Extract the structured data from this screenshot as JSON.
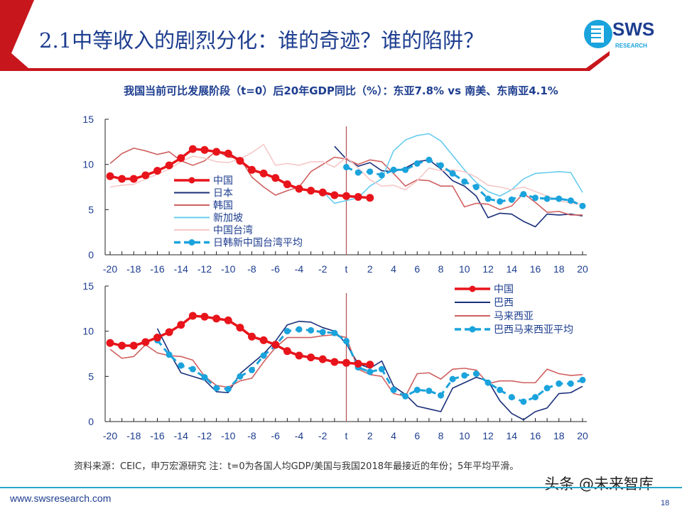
{
  "header": {
    "title": "2.1中等收入的剧烈分化：谁的奇迹？谁的陷阱？",
    "logo": "SWS",
    "logo_sub": "RESEARCH"
  },
  "subtitle": "我国当前可比发展阶段（t=0）后20年GDP同比（%）：东亚7.8% vs 南美、东南亚4.1%",
  "chart_data": [
    {
      "type": "line",
      "ylim": [
        0,
        15
      ],
      "yticks": [
        "0",
        "5",
        "10",
        "15"
      ],
      "xlim": [
        -20,
        20
      ],
      "xticks": [
        "-20",
        "-18",
        "-16",
        "-14",
        "-12",
        "-10",
        "-8",
        "-6",
        "-4",
        "-2",
        "t",
        "2",
        "4",
        "6",
        "8",
        "10",
        "12",
        "14",
        "16",
        "18",
        "20"
      ],
      "legend": "center-left",
      "grid": false,
      "series": [
        {
          "name": "中国",
          "color": "#e8141b",
          "style": "marker",
          "x_start": -20,
          "values": [
            8.7,
            8.4,
            8.4,
            8.8,
            9.3,
            9.9,
            10.7,
            11.7,
            11.6,
            11.4,
            11.2,
            10.4,
            9.4,
            9.0,
            8.5,
            7.8,
            7.3,
            7.1,
            6.9,
            6.6,
            6.5,
            6.4,
            6.3
          ]
        },
        {
          "name": "日本",
          "color": "#1a2f7a",
          "style": "line",
          "x_start": -1,
          "values": [
            12.0,
            10.6,
            9.8,
            10.2,
            9.3,
            9.2,
            9.6,
            10.3,
            10.5,
            9.5,
            8.2,
            7.6,
            6.5,
            4.1,
            4.6,
            4.5,
            3.7,
            3.1,
            4.5,
            4.4,
            4.5,
            4.3
          ]
        },
        {
          "name": "韩国",
          "color": "#d06060",
          "style": "line",
          "x_start": -20,
          "values": [
            10.1,
            11.2,
            11.8,
            11.5,
            11.1,
            11.4,
            10.4,
            9.9,
            10.4,
            11.5,
            10.8,
            10.7,
            8.6,
            7.5,
            6.6,
            7.1,
            7.5,
            9.2,
            10.0,
            10.8,
            10.6,
            10.0,
            10.5,
            10.3,
            9.0,
            7.6,
            8.3,
            8.2,
            7.6,
            7.6,
            5.3,
            5.7,
            5.6,
            5.0,
            5.4,
            6.8,
            5.8,
            4.7,
            4.8,
            4.4,
            4.4
          ]
        },
        {
          "name": "新加坡",
          "color": "#66ccee",
          "style": "line",
          "x_start": -2,
          "values": [
            7.0,
            5.7,
            6.0,
            6.3,
            7.6,
            8.4,
            11.5,
            12.7,
            13.2,
            13.4,
            12.6,
            11.0,
            9.4,
            8.0,
            7.0,
            6.5,
            7.2,
            8.4,
            9.0,
            9.1,
            9.2,
            9.1,
            6.9
          ]
        },
        {
          "name": "中国台湾",
          "color": "#f6c8c8",
          "style": "line",
          "x_start": -20,
          "values": [
            7.5,
            7.7,
            7.8,
            8.4,
            8.9,
            9.5,
            10.3,
            10.9,
            10.7,
            10.3,
            10.2,
            10.6,
            11.3,
            12.2,
            9.9,
            10.1,
            9.9,
            10.3,
            10.3,
            9.7,
            10.8,
            9.6,
            8.3,
            7.6,
            7.7,
            7.2,
            8.2,
            9.6,
            9.3,
            9.4,
            9.2,
            8.6,
            7.7,
            7.5,
            7.2,
            7.5,
            7.0,
            6.5,
            6.0,
            5.7,
            5.6
          ]
        },
        {
          "name": "日韩新中国台湾平均",
          "color": "#1aa3dc",
          "style": "dashmarker",
          "x_start": 0,
          "values": [
            9.7,
            9.1,
            9.2,
            8.8,
            9.4,
            9.4,
            10.1,
            10.5,
            9.9,
            9.0,
            8.1,
            7.5,
            6.2,
            5.9,
            6.1,
            6.7,
            6.3,
            6.2,
            6.2,
            6.0,
            5.4
          ]
        }
      ]
    },
    {
      "type": "line",
      "ylim": [
        0,
        15
      ],
      "yticks": [
        "0",
        "5",
        "10",
        "15"
      ],
      "xlim": [
        -20,
        20
      ],
      "xticks": [
        "-20",
        "-18",
        "-16",
        "-14",
        "-12",
        "-10",
        "-8",
        "-6",
        "-4",
        "-2",
        "t",
        "2",
        "4",
        "6",
        "8",
        "10",
        "12",
        "14",
        "16",
        "18",
        "20"
      ],
      "legend": "top-right",
      "grid": false,
      "series": [
        {
          "name": "中国",
          "color": "#e8141b",
          "style": "marker",
          "x_start": -20,
          "values": [
            8.7,
            8.4,
            8.4,
            8.8,
            9.3,
            9.9,
            10.7,
            11.7,
            11.6,
            11.4,
            11.2,
            10.4,
            9.4,
            9.0,
            8.5,
            7.8,
            7.3,
            7.1,
            6.9,
            6.6,
            6.5,
            6.4,
            6.3
          ]
        },
        {
          "name": "巴西",
          "color": "#1a2f7a",
          "style": "line",
          "x_start": -16,
          "values": [
            10.3,
            7.7,
            5.4,
            5.0,
            4.6,
            3.3,
            3.2,
            5.3,
            6.4,
            7.5,
            8.9,
            10.7,
            11.1,
            11.0,
            10.4,
            10.0,
            8.6,
            6.4,
            5.9,
            6.7,
            3.9,
            3.0,
            1.7,
            1.4,
            1.1,
            3.7,
            4.3,
            4.9,
            4.5,
            2.3,
            0.9,
            0.2,
            1.1,
            1.5,
            3.1,
            3.2,
            3.9
          ]
        },
        {
          "name": "马来西亚",
          "color": "#d06060",
          "style": "line",
          "x_start": -20,
          "values": [
            8.0,
            7.0,
            7.2,
            8.5,
            7.6,
            7.3,
            7.2,
            6.8,
            5.0,
            4.0,
            3.8,
            4.5,
            4.8,
            6.6,
            8.2,
            9.3,
            9.3,
            9.3,
            9.5,
            9.6,
            9.3,
            5.8,
            5.2,
            5.0,
            3.1,
            2.8,
            5.3,
            5.4,
            4.7,
            5.8,
            5.9,
            5.7,
            4.2,
            4.5,
            4.5,
            4.3,
            4.3,
            5.8,
            5.3,
            5.1,
            5.2
          ]
        },
        {
          "name": "巴西马来西亚平均",
          "color": "#1aa3dc",
          "style": "dashmarker",
          "x_start": -16,
          "values": [
            9.0,
            7.4,
            6.2,
            5.8,
            4.9,
            3.7,
            3.6,
            5.0,
            5.7,
            7.3,
            8.4,
            10.0,
            10.2,
            10.1,
            9.9,
            9.8,
            8.9,
            6.0,
            5.5,
            5.8,
            3.5,
            2.8,
            3.5,
            3.4,
            2.9,
            4.7,
            5.1,
            5.3,
            4.3,
            3.5,
            2.7,
            2.2,
            2.7,
            3.7,
            4.2,
            4.2,
            4.6
          ]
        }
      ]
    }
  ],
  "footer": {
    "source": "资料来源：CEIC，申万宏源研究  注：t=0为各国人均GDP/美国与我国2018年最接近的年份；5年平均平滑。",
    "url": "www.swsresearch.com",
    "page": "18",
    "watermark": "头条 @未来智库"
  }
}
